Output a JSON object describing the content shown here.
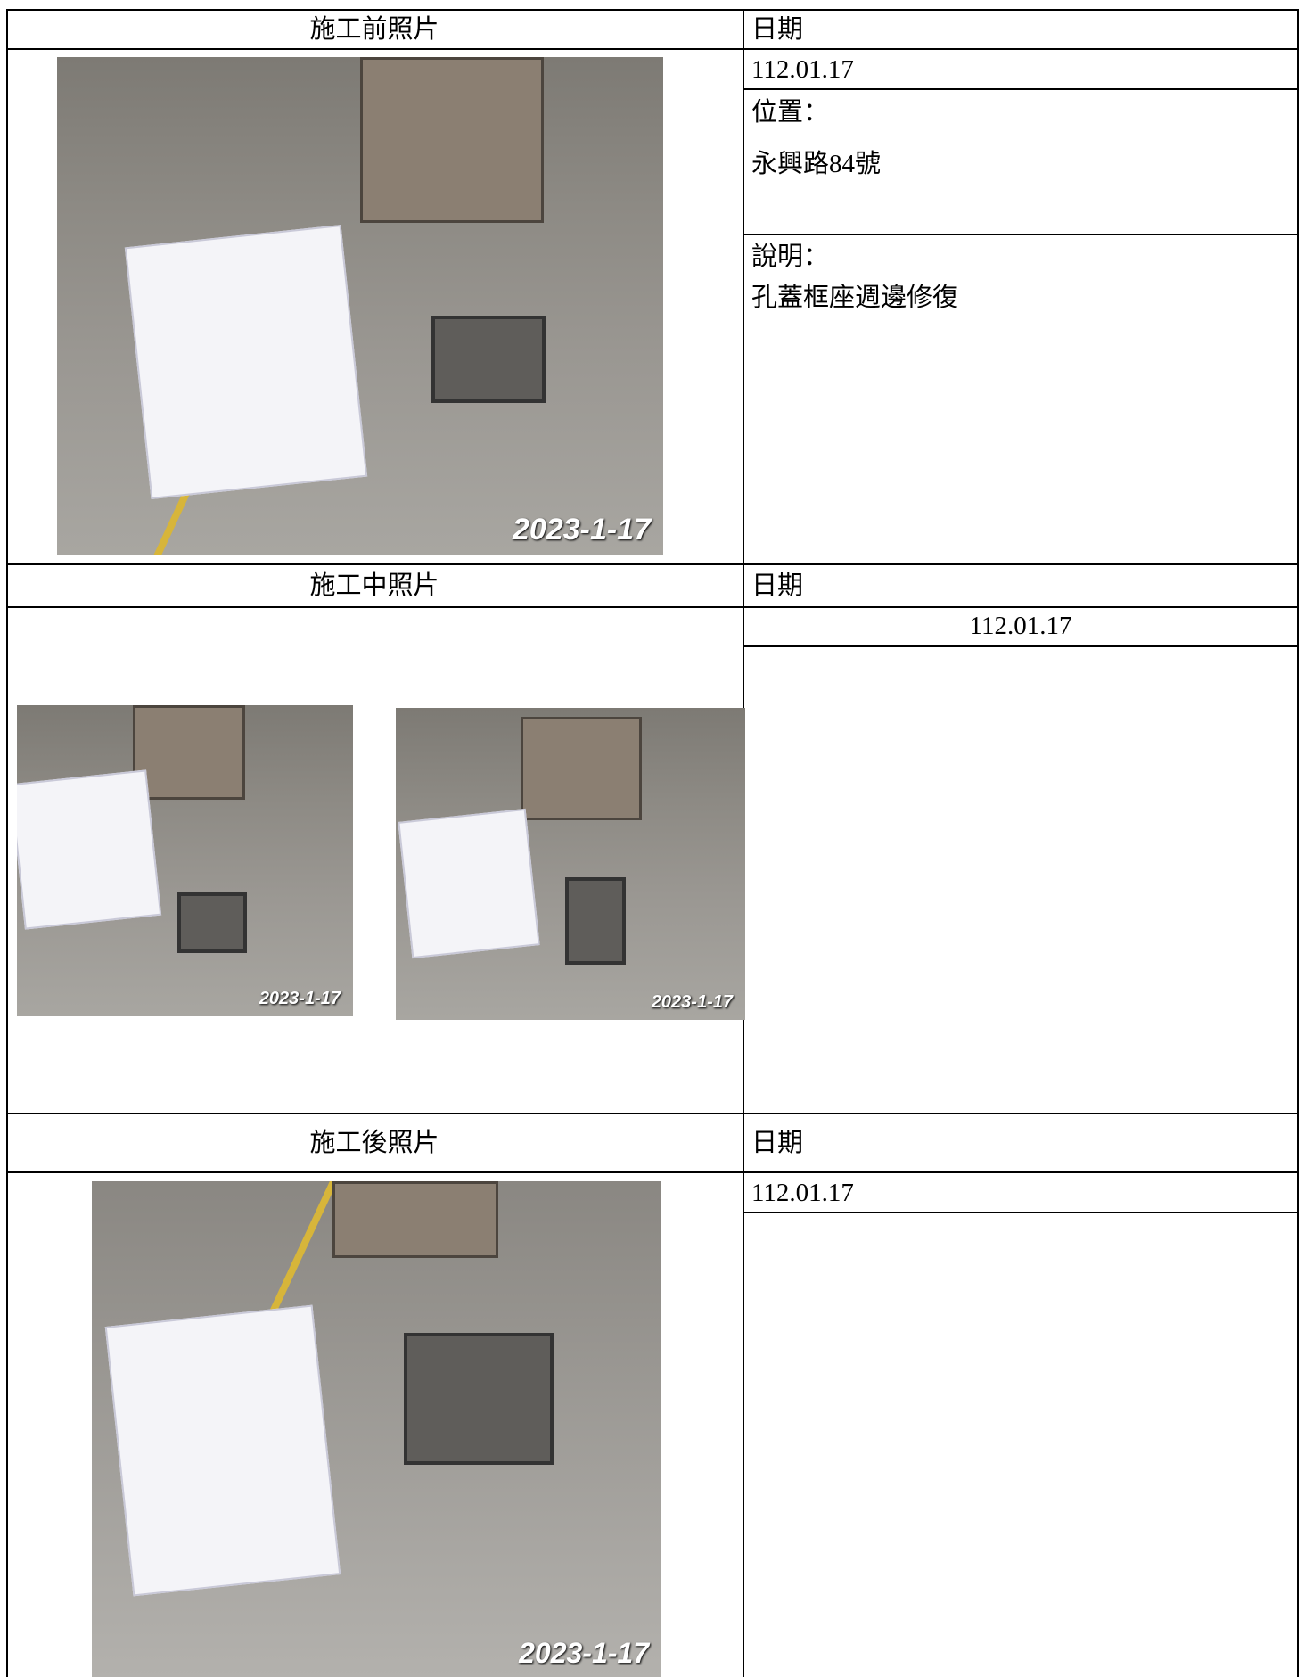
{
  "table": {
    "rows": [
      {
        "photo_header": "施工前照片",
        "date_header": "日期",
        "date": "112.01.17",
        "location_label": "位置：",
        "location": "永興路84號",
        "description_label": "說明：",
        "description": "孔蓋框座週邊修復",
        "photo_stamps": [
          "2023-1-17"
        ]
      },
      {
        "photo_header": "施工中照片",
        "date_header": "日期",
        "date": "112.01.17",
        "photo_stamps": [
          "2023-1-17",
          "2023-1-17"
        ]
      },
      {
        "photo_header": "施工後照片",
        "date_header": "日期",
        "date": "112.01.17",
        "photo_stamps": [
          "2023-1-17"
        ]
      }
    ]
  }
}
